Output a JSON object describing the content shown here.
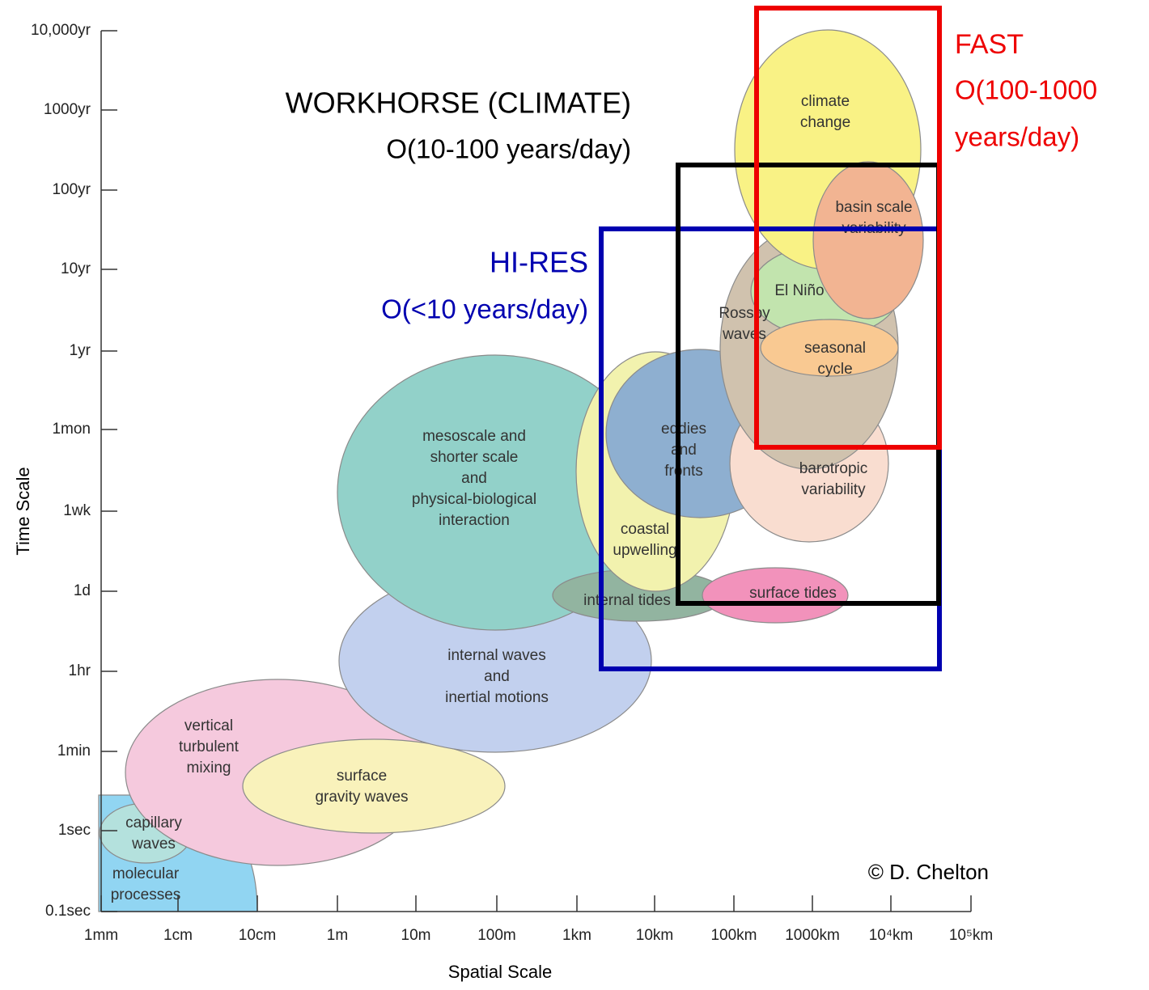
{
  "axes": {
    "y_title": "Time Scale",
    "x_title": "Spatial Scale",
    "y_ticks": [
      "10,000yr",
      "1000yr",
      "100yr",
      "10yr",
      "1yr",
      "1mon",
      "1wk",
      "1d",
      "1hr",
      "1min",
      "1sec",
      "0.1sec"
    ],
    "x_ticks": [
      "1mm",
      "1cm",
      "10cm",
      "1m",
      "10m",
      "100m",
      "1km",
      "10km",
      "100km",
      "1000km",
      "10⁴km",
      "10⁵km"
    ]
  },
  "regions": [
    {
      "lines": [
        "molecular",
        "processes"
      ]
    },
    {
      "lines": [
        "capillary",
        "waves"
      ]
    },
    {
      "lines": [
        "vertical",
        "turbulent",
        "mixing"
      ]
    },
    {
      "lines": [
        "surface",
        "gravity waves"
      ]
    },
    {
      "lines": [
        "internal waves",
        "and",
        "inertial motions"
      ]
    },
    {
      "lines": [
        "mesoscale and",
        "shorter scale",
        "and",
        "physical-biological",
        "interaction"
      ]
    },
    {
      "lines": [
        "internal tides"
      ]
    },
    {
      "lines": [
        "coastal",
        "upwelling"
      ]
    },
    {
      "lines": [
        "eddies",
        "and",
        "fronts"
      ]
    },
    {
      "lines": [
        "surface tides"
      ]
    },
    {
      "lines": [
        "barotropic",
        "variability"
      ]
    },
    {
      "lines": [
        "Rossby",
        "waves"
      ]
    },
    {
      "lines": [
        "El Niño"
      ]
    },
    {
      "lines": [
        "seasonal",
        "cycle"
      ]
    },
    {
      "lines": [
        "climate",
        "change"
      ]
    },
    {
      "lines": [
        "basin scale",
        "variability"
      ]
    }
  ],
  "boxes": {
    "workhorse": [
      "WORKHORSE (CLIMATE)",
      "O(10-100 years/day)"
    ],
    "hires": [
      "HI-RES",
      "O(<10 years/day)"
    ],
    "fast": [
      "FAST",
      "O(100-1000",
      "years/day)"
    ]
  },
  "credit": "© D. Chelton"
}
